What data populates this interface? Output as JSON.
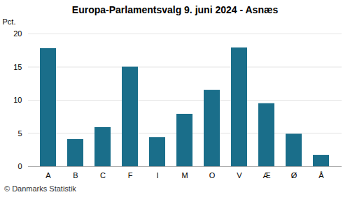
{
  "chart_data": {
    "type": "bar",
    "title": "Europa-Parlamentsvalg 9. juni 2024 - Asnæs",
    "ylabel": "Pct.",
    "categories": [
      "A",
      "B",
      "C",
      "F",
      "I",
      "M",
      "O",
      "V",
      "Æ",
      "Ø",
      "Å"
    ],
    "values": [
      17.8,
      4.1,
      5.9,
      15.0,
      4.4,
      7.9,
      11.5,
      17.9,
      9.5,
      4.9,
      1.7
    ],
    "color": "#1a6e8a",
    "ylim": [
      0,
      20
    ],
    "yticks": [
      0,
      5,
      10,
      15,
      20
    ],
    "grid": true,
    "annotations": [
      "© Danmarks Statistik"
    ]
  }
}
